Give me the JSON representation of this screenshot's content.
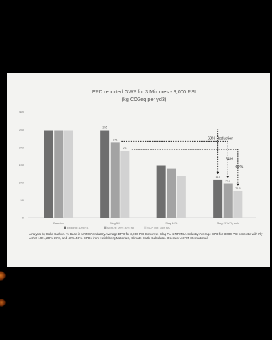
{
  "chart_data": {
    "type": "bar",
    "title": "EPD reported GWP for 3 Mixtures - 3,000 PSI",
    "subtitle": "(kg CO2eq per yd3)",
    "ylim": [
      0,
      300
    ],
    "yticks": [
      0,
      50,
      100,
      150,
      200,
      250,
      300
    ],
    "categories": [
      "Baseline",
      "Slag 5%",
      "Slag 10%",
      "Slag 20%/Fly Ash"
    ],
    "series": [
      {
        "name": "Existing: 10% FA",
        "color": "#6e6e6e",
        "values": [
          248,
          248,
          148,
          108
        ]
      },
      {
        "name": "Mixture: 20% 30% FA",
        "color": "#a3a3a3",
        "values": [
          248,
          213,
          140,
          97
        ]
      },
      {
        "name": "SCP Mix: 35% FA",
        "color": "#d2d2d2",
        "values": [
          248,
          190,
          118,
          75
        ]
      }
    ],
    "data_labels": [
      "355",
      "271",
      "261",
      "113",
      "97.2",
      "75.6"
    ],
    "annotations": [
      "68% Reduction",
      "64%",
      "69%"
    ],
    "legend": "bottom",
    "grid": false
  },
  "caption": "Analysis by Solid Carbon. A: Base is NRMCA Industry Average EPD for 3,000 PSI Concrete. Slag FA is NRMCA Industry Average EPD for 3,000 PSI concrete with Fly Ash 0-19%, 20%-39%, and 40%-49%. EPDs from Heidelberg Materials, Climate Earth Calculator. Operator ASTM International.",
  "colors": {
    "background": "#000000",
    "card": "#f3f3f1",
    "text": "#444444",
    "annotation_line": "#222222"
  }
}
